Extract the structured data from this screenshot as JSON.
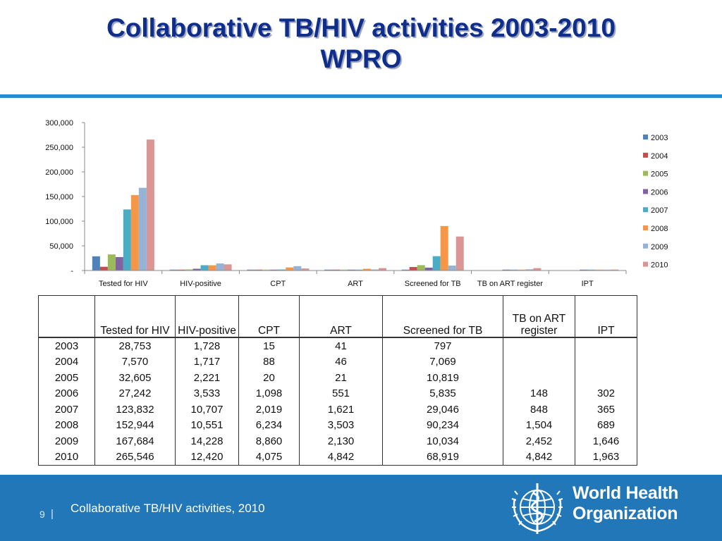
{
  "title": {
    "line1": "Collaborative TB/HIV activities 2003-2010",
    "line2": "WPRO"
  },
  "chart_data": {
    "type": "bar",
    "categories": [
      "Tested for HIV",
      "HIV-positive",
      "CPT",
      "ART",
      "Screened for TB",
      "TB on ART register",
      "IPT"
    ],
    "series": [
      {
        "name": "2003",
        "color": "#4f81bd",
        "values": [
          28753,
          1728,
          15,
          41,
          797,
          null,
          null
        ]
      },
      {
        "name": "2004",
        "color": "#c0504d",
        "values": [
          7570,
          1717,
          88,
          46,
          7069,
          null,
          null
        ]
      },
      {
        "name": "2005",
        "color": "#9bbb59",
        "values": [
          32605,
          2221,
          20,
          21,
          10819,
          null,
          null
        ]
      },
      {
        "name": "2006",
        "color": "#8064a2",
        "values": [
          27242,
          3533,
          1098,
          551,
          5835,
          148,
          302
        ]
      },
      {
        "name": "2007",
        "color": "#4bacc6",
        "values": [
          123832,
          10707,
          2019,
          1621,
          29046,
          848,
          365
        ]
      },
      {
        "name": "2008",
        "color": "#f79646",
        "values": [
          152944,
          10551,
          6234,
          3503,
          90234,
          1504,
          689
        ]
      },
      {
        "name": "2009",
        "color": "#95b3d7",
        "values": [
          167684,
          14228,
          8860,
          2130,
          10034,
          2452,
          1646
        ]
      },
      {
        "name": "2010",
        "color": "#d99694",
        "values": [
          265546,
          12420,
          4075,
          4842,
          68919,
          4842,
          1963
        ]
      }
    ],
    "y_ticks": [
      {
        "value": 0,
        "label": "-"
      },
      {
        "value": 50000,
        "label": "50,000"
      },
      {
        "value": 100000,
        "label": "100,000"
      },
      {
        "value": 150000,
        "label": "150,000"
      },
      {
        "value": 200000,
        "label": "200,000"
      },
      {
        "value": 250000,
        "label": "250,000"
      },
      {
        "value": 300000,
        "label": "300,000"
      }
    ],
    "ylim": [
      0,
      300000
    ],
    "grid": false,
    "legend_position": "right"
  },
  "table": {
    "header": [
      "",
      "Tested for HIV",
      "HIV-positive",
      "CPT",
      "ART",
      "Screened for TB",
      "TB on ART register",
      "IPT"
    ],
    "rows": [
      [
        "2003",
        "28,753",
        "1,728",
        "15",
        "41",
        "797",
        "",
        ""
      ],
      [
        "2004",
        "7,570",
        "1,717",
        "88",
        "46",
        "7,069",
        "",
        ""
      ],
      [
        "2005",
        "32,605",
        "2,221",
        "20",
        "21",
        "10,819",
        "",
        ""
      ],
      [
        "2006",
        "27,242",
        "3,533",
        "1,098",
        "551",
        "5,835",
        "148",
        "302"
      ],
      [
        "2007",
        "123,832",
        "10,707",
        "2,019",
        "1,621",
        "29,046",
        "848",
        "365"
      ],
      [
        "2008",
        "152,944",
        "10,551",
        "6,234",
        "3,503",
        "90,234",
        "1,504",
        "689"
      ],
      [
        "2009",
        "167,684",
        "14,228",
        "8,860",
        "2,130",
        "10,034",
        "2,452",
        "1,646"
      ],
      [
        "2010",
        "265,546",
        "12,420",
        "4,075",
        "4,842",
        "68,919",
        "4,842",
        "1,963"
      ]
    ]
  },
  "footer": {
    "page_number": "9",
    "separator": "|",
    "text": "Collaborative TB/HIV activities, 2010",
    "org_name_line1": "World Health",
    "org_name_line2": "Organization",
    "logo_icon": "who-emblem-icon"
  }
}
